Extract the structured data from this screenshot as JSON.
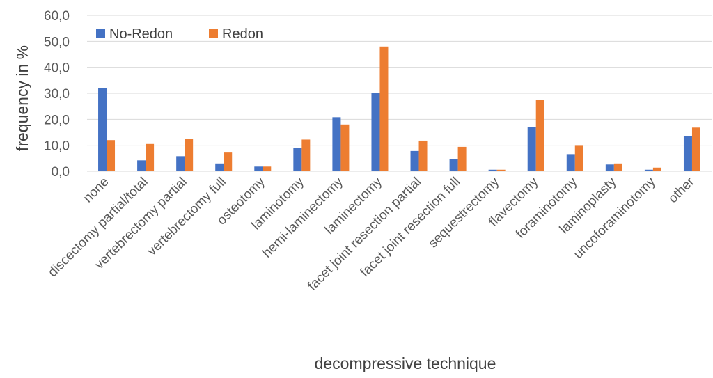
{
  "chart_data": {
    "type": "bar",
    "xlabel": "decompressive technique",
    "ylabel": "frequency in %",
    "ylim": [
      0,
      60
    ],
    "yticks": [
      "0,0",
      "10,0",
      "20,0",
      "30,0",
      "40,0",
      "50,0",
      "60,0"
    ],
    "grid": true,
    "legend_position": "top-left",
    "categories": [
      "none",
      "discectomy partial/total",
      "vertebrectomy partial",
      "vertebrectomy full",
      "osteotomy",
      "laminotomy",
      "hemi-laminectomy",
      "laminectomy",
      "facet joint resection partial",
      "facet joint resection full",
      "sequestrectomy",
      "flavectomy",
      "foraminotomy",
      "laminoplasty",
      "uncoforaminotomy",
      "other"
    ],
    "series": [
      {
        "name": "No-Redon",
        "color": "#4472C4",
        "values": [
          32.0,
          4.2,
          5.8,
          3.0,
          1.8,
          9.0,
          20.8,
          30.2,
          7.8,
          4.6,
          0.6,
          17.0,
          6.6,
          2.6,
          0.6,
          13.6
        ]
      },
      {
        "name": "Redon",
        "color": "#ED7D31",
        "values": [
          12.0,
          10.5,
          12.5,
          7.2,
          1.8,
          12.2,
          18.0,
          48.0,
          11.8,
          9.4,
          0.6,
          27.4,
          9.8,
          3.0,
          1.4,
          16.8
        ]
      }
    ]
  }
}
